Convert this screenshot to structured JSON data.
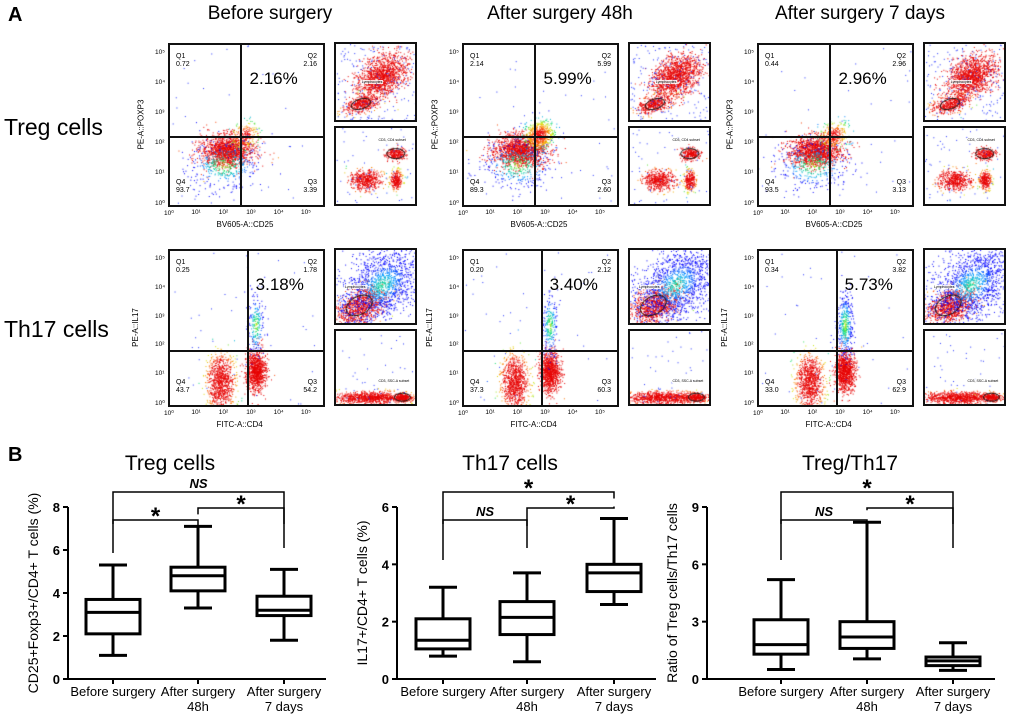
{
  "panel_a_label": "A",
  "panel_b_label": "B",
  "columns": [
    "Before surgery",
    "After surgery 48h",
    "After surgery 7 days"
  ],
  "rows": [
    {
      "label": "Treg cells",
      "x_axis": "BV605-A::CD25",
      "y_axis": "PE-A::POXP3",
      "gate_top": "Lymphocytes",
      "gate_bottom": "CD3, CD4 subset",
      "plots": [
        {
          "highlight": "2.16%",
          "Q1": "0.72",
          "Q2": "2.16",
          "Q3": "3.39",
          "Q4": "93.7"
        },
        {
          "highlight": "5.99%",
          "Q1": "2.14",
          "Q2": "5.99",
          "Q3": "2.60",
          "Q4": "89.3"
        },
        {
          "highlight": "2.96%",
          "Q1": "0.44",
          "Q2": "2.96",
          "Q3": "3.13",
          "Q4": "93.5"
        }
      ]
    },
    {
      "label": "Th17 cells",
      "x_axis": "FITC-A::CD4",
      "y_axis": "PE-A::IL17",
      "gate_top": "Lymphocytes",
      "gate_bottom": "CD3, SSC-A subset",
      "plots": [
        {
          "highlight": "3.18%",
          "Q1": "0.25",
          "Q2": "1.78",
          "Q3": "54.2",
          "Q4": "43.7"
        },
        {
          "highlight": "3.40%",
          "Q1": "0.20",
          "Q2": "2.12",
          "Q3": "60.3",
          "Q4": "37.3"
        },
        {
          "highlight": "5.73%",
          "Q1": "0.34",
          "Q2": "3.82",
          "Q3": "62.9",
          "Q4": "33.0"
        }
      ]
    }
  ],
  "quadrant_names": [
    "Q1",
    "Q2",
    "Q3",
    "Q4"
  ],
  "log_ticks": [
    "10⁰",
    "10¹",
    "10²",
    "10³",
    "10⁴",
    "10⁵"
  ],
  "chart_data": [
    {
      "type": "box",
      "title": "Treg cells",
      "ylabel": "CD25+Foxp3+/CD4+ T cells (%)",
      "categories": [
        "Before surgery",
        "After surgery\n48h",
        "After surgery\n7 days"
      ],
      "ylim": [
        0,
        8
      ],
      "yticks": [
        0,
        2,
        4,
        6,
        8
      ],
      "boxes": [
        {
          "min": 1.1,
          "q1": 2.1,
          "median": 3.1,
          "q3": 3.7,
          "max": 5.3
        },
        {
          "min": 3.3,
          "q1": 4.1,
          "median": 4.8,
          "q3": 5.2,
          "max": 7.1
        },
        {
          "min": 1.8,
          "q1": 2.95,
          "median": 3.2,
          "q3": 3.85,
          "max": 5.1
        }
      ],
      "comparisons": [
        {
          "from": 0,
          "to": 2,
          "label": "NS",
          "level": 2
        },
        {
          "from": 0,
          "to": 1,
          "label": "*",
          "level": 1
        },
        {
          "from": 1,
          "to": 2,
          "label": "*",
          "level": 1
        }
      ]
    },
    {
      "type": "box",
      "title": "Th17 cells",
      "ylabel": "IL17+/CD4+ T cells (%)",
      "categories": [
        "Before surgery",
        "After surgery\n48h",
        "After surgery\n7 days"
      ],
      "ylim": [
        0,
        6
      ],
      "yticks": [
        0,
        2,
        4,
        6
      ],
      "boxes": [
        {
          "min": 0.8,
          "q1": 1.05,
          "median": 1.35,
          "q3": 2.1,
          "max": 3.2
        },
        {
          "min": 0.6,
          "q1": 1.55,
          "median": 2.15,
          "q3": 2.7,
          "max": 3.7
        },
        {
          "min": 2.6,
          "q1": 3.05,
          "median": 3.7,
          "q3": 4.0,
          "max": 5.6
        }
      ],
      "comparisons": [
        {
          "from": 0,
          "to": 2,
          "label": "*",
          "level": 2
        },
        {
          "from": 0,
          "to": 1,
          "label": "NS",
          "level": 1
        },
        {
          "from": 1,
          "to": 2,
          "label": "*",
          "level": 1
        }
      ]
    },
    {
      "type": "box",
      "title": "Treg/Th17",
      "ylabel": "Ratio of Treg cells/Th17 cells",
      "categories": [
        "Before surgery",
        "After surgery\n48h",
        "After surgery\n7 days"
      ],
      "ylim": [
        0,
        9
      ],
      "yticks": [
        0,
        3,
        6,
        9
      ],
      "boxes": [
        {
          "min": 0.5,
          "q1": 1.3,
          "median": 1.8,
          "q3": 3.1,
          "max": 5.2
        },
        {
          "min": 1.05,
          "q1": 1.6,
          "median": 2.2,
          "q3": 3.0,
          "max": 8.2
        },
        {
          "min": 0.45,
          "q1": 0.7,
          "median": 0.95,
          "q3": 1.15,
          "max": 1.9
        }
      ],
      "comparisons": [
        {
          "from": 0,
          "to": 2,
          "label": "*",
          "level": 2
        },
        {
          "from": 0,
          "to": 1,
          "label": "NS",
          "level": 1
        },
        {
          "from": 1,
          "to": 2,
          "label": "*",
          "level": 1
        }
      ]
    }
  ]
}
